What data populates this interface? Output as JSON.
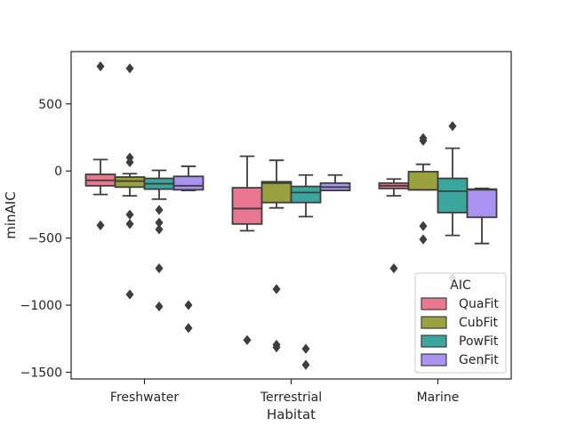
{
  "chart_data": {
    "type": "box",
    "xlabel": "Habitat",
    "ylabel": "minAIC",
    "categories": [
      "Freshwater",
      "Terrestrial",
      "Marine"
    ],
    "ylim": [
      -1550,
      890
    ],
    "yticks": [
      500,
      0,
      -500,
      -1000,
      -1500
    ],
    "ytick_labels": [
      "500",
      "0",
      "−500",
      "−1000",
      "−1500"
    ],
    "grid": false,
    "legend": {
      "title": "AIC",
      "placement": "lower-right"
    },
    "series": [
      {
        "name": "QuaFit",
        "color": "#e8778f",
        "boxes": [
          {
            "category": "Freshwater",
            "whisker_low": -175,
            "q1": -110,
            "median": -70,
            "q3": -25,
            "whisker_high": 85,
            "outliers": [
              780,
              -405
            ]
          },
          {
            "category": "Terrestrial",
            "whisker_low": -445,
            "q1": -395,
            "median": -280,
            "q3": -125,
            "whisker_high": 110,
            "outliers": [
              -1260
            ]
          },
          {
            "category": "Marine",
            "whisker_low": -185,
            "q1": -130,
            "median": -110,
            "q3": -90,
            "whisker_high": -60,
            "outliers": [
              -725
            ]
          }
        ]
      },
      {
        "name": "CubFit",
        "color": "#9aa23f",
        "boxes": [
          {
            "category": "Freshwater",
            "whisker_low": -185,
            "q1": -120,
            "median": -75,
            "q3": -45,
            "whisker_high": -20,
            "outliers": [
              765,
              100,
              65,
              -325,
              -395,
              -920
            ]
          },
          {
            "category": "Terrestrial",
            "whisker_low": -275,
            "q1": -235,
            "median": -90,
            "q3": -80,
            "whisker_high": 80,
            "outliers": [
              -880,
              -1295,
              -1315
            ]
          },
          {
            "category": "Marine",
            "whisker_low": -140,
            "q1": -140,
            "median": -140,
            "q3": -5,
            "whisker_high": 50,
            "outliers": [
              245,
              225,
              -410,
              -510
            ]
          }
        ]
      },
      {
        "name": "PowFit",
        "color": "#3aa69d",
        "boxes": [
          {
            "category": "Freshwater",
            "whisker_low": -210,
            "q1": -135,
            "median": -95,
            "q3": -55,
            "whisker_high": 5,
            "outliers": [
              -290,
              -385,
              -435,
              -725,
              -1010
            ]
          },
          {
            "category": "Terrestrial",
            "whisker_low": -340,
            "q1": -235,
            "median": -160,
            "q3": -115,
            "whisker_high": -30,
            "outliers": [
              -1325,
              -1445
            ]
          },
          {
            "category": "Marine",
            "whisker_low": -480,
            "q1": -310,
            "median": -150,
            "q3": -55,
            "whisker_high": 170,
            "outliers": [
              335,
              -800
            ]
          }
        ]
      },
      {
        "name": "GenFit",
        "color": "#a894f0",
        "boxes": [
          {
            "category": "Freshwater",
            "whisker_low": -145,
            "q1": -140,
            "median": -110,
            "q3": -40,
            "whisker_high": 35,
            "outliers": [
              -1000,
              -1170
            ]
          },
          {
            "category": "Terrestrial",
            "whisker_low": -145,
            "q1": -145,
            "median": -120,
            "q3": -90,
            "whisker_high": -30,
            "outliers": []
          },
          {
            "category": "Marine",
            "whisker_low": -540,
            "q1": -345,
            "median": -140,
            "q3": -135,
            "whisker_high": -130,
            "outliers": [
              -1425
            ]
          }
        ]
      }
    ]
  }
}
